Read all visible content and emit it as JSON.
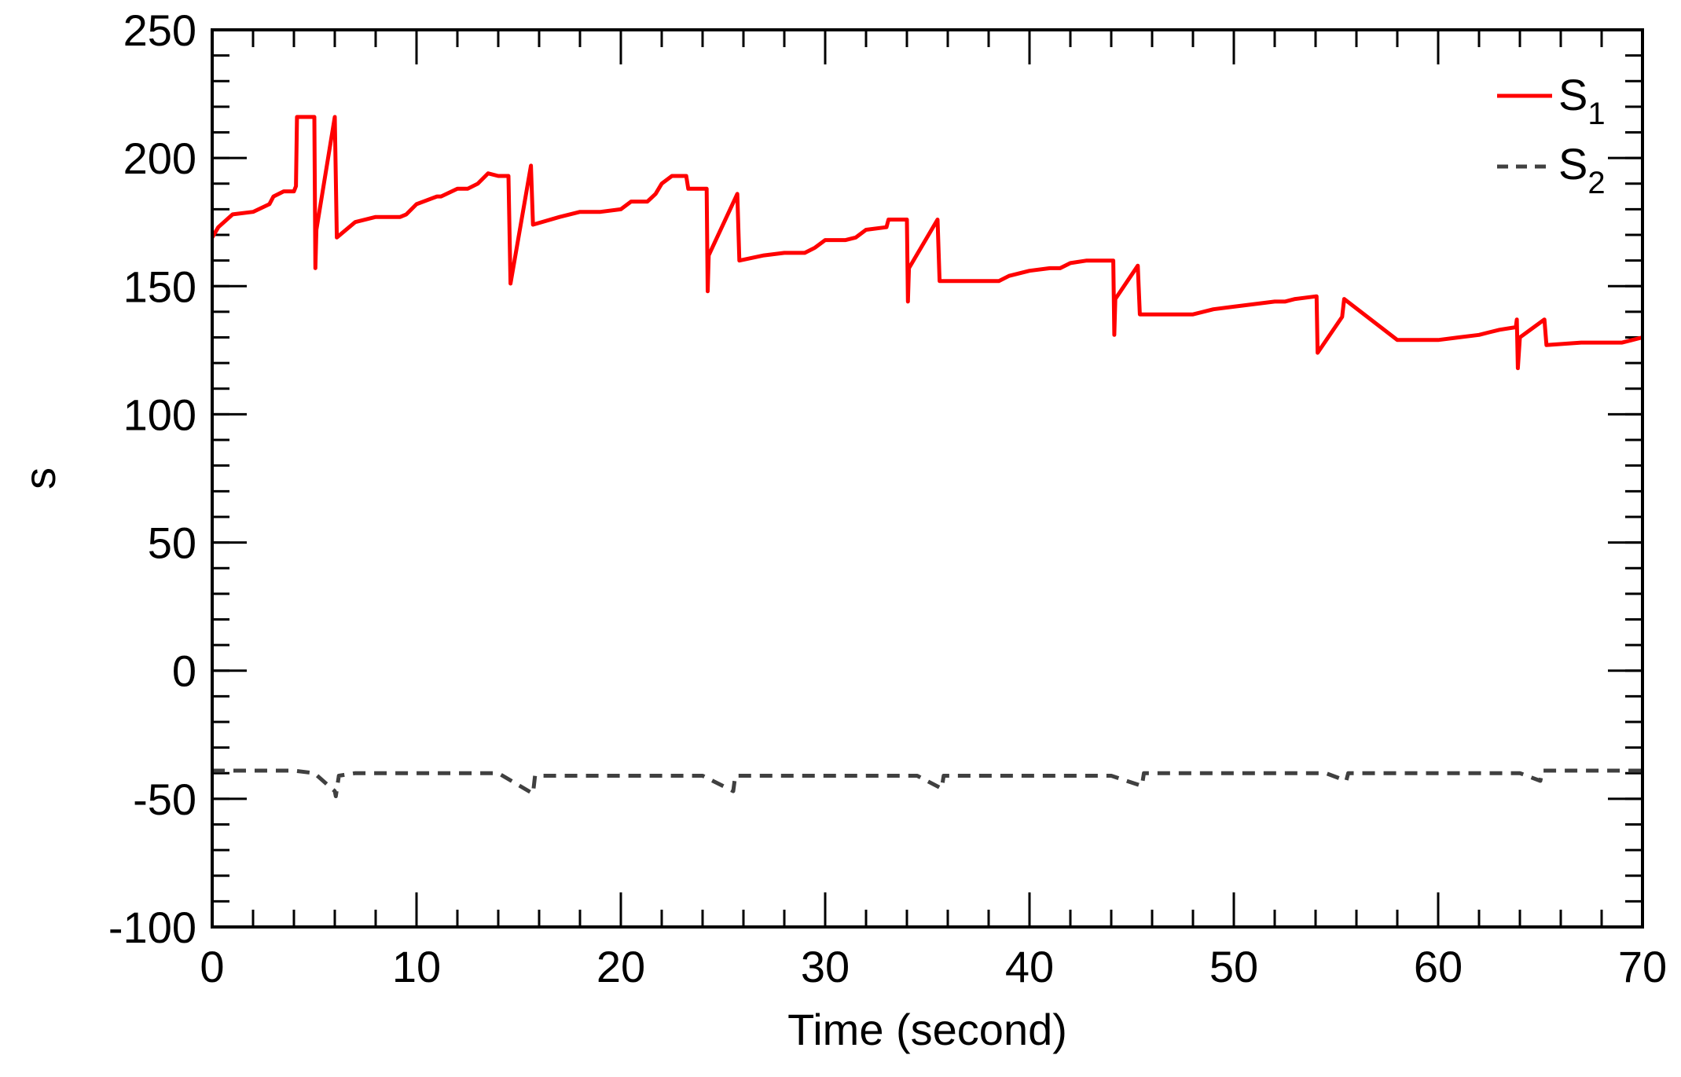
{
  "chart_data": {
    "type": "line",
    "title": "",
    "xlabel": "Time (second)",
    "ylabel": "s",
    "xlim": [
      0,
      70
    ],
    "ylim": [
      -100,
      250
    ],
    "xticks": [
      0,
      10,
      20,
      30,
      40,
      50,
      60,
      70
    ],
    "yticks": [
      -100,
      -50,
      0,
      50,
      100,
      150,
      200,
      250
    ],
    "xtick_labels": [
      "0",
      "10",
      "20",
      "30",
      "40",
      "50",
      "60",
      "70"
    ],
    "ytick_labels": [
      "-100",
      "-50",
      "0",
      "50",
      "100",
      "150",
      "200",
      "250"
    ],
    "x_minor_step": 2,
    "y_minor_step": 10,
    "grid": false,
    "legend_position": "top-right",
    "legend": [
      {
        "base": "S",
        "sub": "1"
      },
      {
        "base": "S",
        "sub": "2"
      }
    ],
    "series": [
      {
        "name": "S1",
        "color": "#ff0000",
        "style": "solid",
        "x": [
          0,
          0.3,
          1,
          2,
          2.8,
          3,
          3.5,
          4,
          4.1,
          4.15,
          5,
          5.05,
          5.1,
          6,
          6.1,
          7,
          8,
          9.2,
          9.5,
          10,
          11,
          11.2,
          12,
          12.5,
          13,
          13.5,
          14,
          14.5,
          14.6,
          15.6,
          15.7,
          17,
          18,
          19,
          20,
          20.5,
          21,
          21.3,
          21.7,
          22,
          22.5,
          23.2,
          23.3,
          24.2,
          24.25,
          24.3,
          25.7,
          25.8,
          27,
          28,
          29,
          29.5,
          30,
          31,
          31.5,
          32,
          33,
          33.1,
          34,
          34.05,
          34.1,
          35.5,
          35.6,
          37,
          38.5,
          39,
          40,
          41,
          41.5,
          42,
          42.8,
          43.5,
          44.1,
          44.15,
          44.2,
          45.3,
          45.4,
          47,
          48,
          49,
          50,
          51,
          52,
          52.5,
          53,
          54,
          54.05,
          54.1,
          55.3,
          55.4,
          58,
          60,
          61,
          62,
          62.5,
          63,
          63.8,
          63.85,
          63.9,
          64,
          65.2,
          65.3,
          67,
          68,
          69,
          69.5,
          70
        ],
        "y": [
          169,
          173,
          178,
          179,
          182,
          185,
          187,
          187,
          189,
          216,
          216,
          157,
          172,
          216,
          169,
          175,
          177,
          177,
          178,
          182,
          185,
          185,
          188,
          188,
          190,
          194,
          193,
          193,
          151,
          197,
          174,
          177,
          179,
          179,
          180,
          183,
          183,
          183,
          186,
          190,
          193,
          193,
          188,
          188,
          148,
          162,
          186,
          160,
          162,
          163,
          163,
          165,
          168,
          168,
          169,
          172,
          173,
          176,
          176,
          144,
          157,
          176,
          152,
          152,
          152,
          154,
          156,
          157,
          157,
          159,
          160,
          160,
          160,
          131,
          145,
          158,
          139,
          139,
          139,
          141,
          142,
          143,
          144,
          144,
          145,
          146,
          146,
          124,
          138,
          145,
          129,
          129,
          130,
          131,
          132,
          133,
          134,
          137,
          118,
          130,
          137,
          127,
          128,
          128,
          128,
          129,
          130
        ]
      },
      {
        "name": "S2",
        "color": "#404040",
        "style": "dashed",
        "x": [
          0,
          4,
          5,
          6,
          6.05,
          6.2,
          7,
          10,
          14,
          15.7,
          15.8,
          20,
          24,
          25.5,
          25.6,
          30,
          34.5,
          35.7,
          35.8,
          40,
          44,
          45.5,
          45.6,
          50,
          54.5,
          55.5,
          55.6,
          60,
          64,
          65,
          65.1,
          70
        ],
        "y": [
          -39,
          -39,
          -40,
          -47,
          -49,
          -41,
          -40,
          -40,
          -40,
          -48,
          -41,
          -41,
          -41,
          -47,
          -41,
          -41,
          -41,
          -46,
          -41,
          -41,
          -41,
          -45,
          -40,
          -40,
          -40,
          -43,
          -40,
          -40,
          -40,
          -43,
          -39,
          -39
        ]
      }
    ]
  }
}
